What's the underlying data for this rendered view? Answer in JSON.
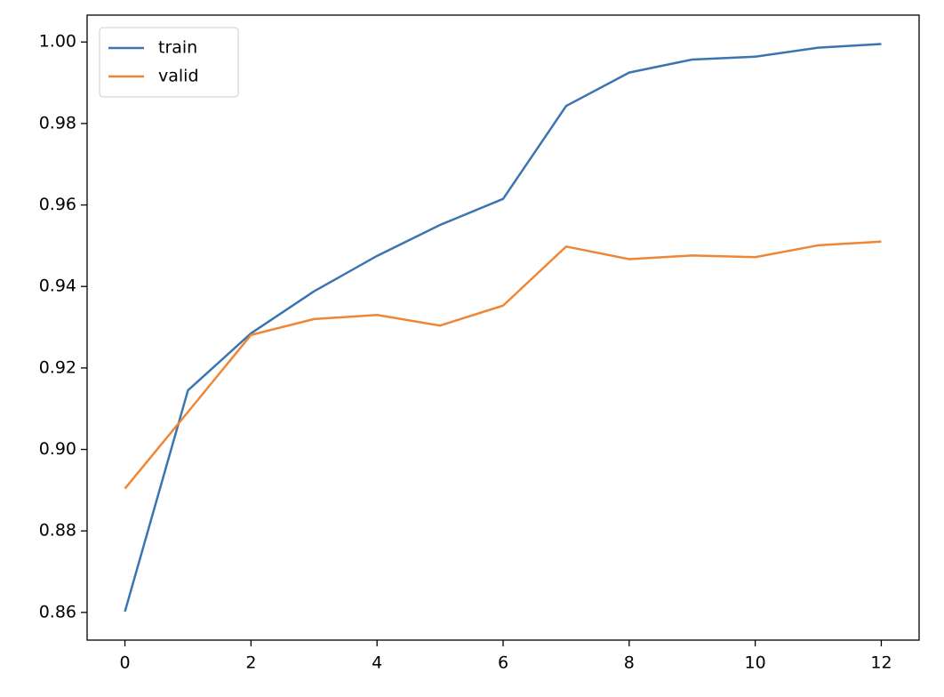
{
  "chart_data": {
    "type": "line",
    "x": [
      0,
      1,
      2,
      3,
      4,
      5,
      6,
      7,
      8,
      9,
      10,
      11,
      12
    ],
    "series": [
      {
        "name": "train",
        "color": "#3b75af",
        "values": [
          0.8602,
          0.9145,
          0.9285,
          0.9388,
          0.9475,
          0.9551,
          0.9615,
          0.9843,
          0.9925,
          0.9957,
          0.9964,
          0.9986,
          0.9995
        ]
      },
      {
        "name": "valid",
        "color": "#ef8636",
        "values": [
          0.8904,
          0.9092,
          0.9281,
          0.932,
          0.933,
          0.9304,
          0.9353,
          0.9498,
          0.9467,
          0.9476,
          0.9472,
          0.9501,
          0.951
        ]
      }
    ],
    "xlim": [
      -0.6,
      12.6
    ],
    "xticks": [
      0,
      2,
      4,
      6,
      8,
      10,
      12
    ],
    "ylim": [
      0.8532,
      1.0066
    ],
    "yticks": [
      {
        "value": 0.86,
        "label": "0.86"
      },
      {
        "value": 0.88,
        "label": "0.88"
      },
      {
        "value": 0.9,
        "label": "0.90"
      },
      {
        "value": 0.92,
        "label": "0.92"
      },
      {
        "value": 0.94,
        "label": "0.94"
      },
      {
        "value": 0.96,
        "label": "0.96"
      },
      {
        "value": 0.98,
        "label": "0.98"
      },
      {
        "value": 1.0,
        "label": "1.00"
      }
    ],
    "legend": "upper left"
  }
}
